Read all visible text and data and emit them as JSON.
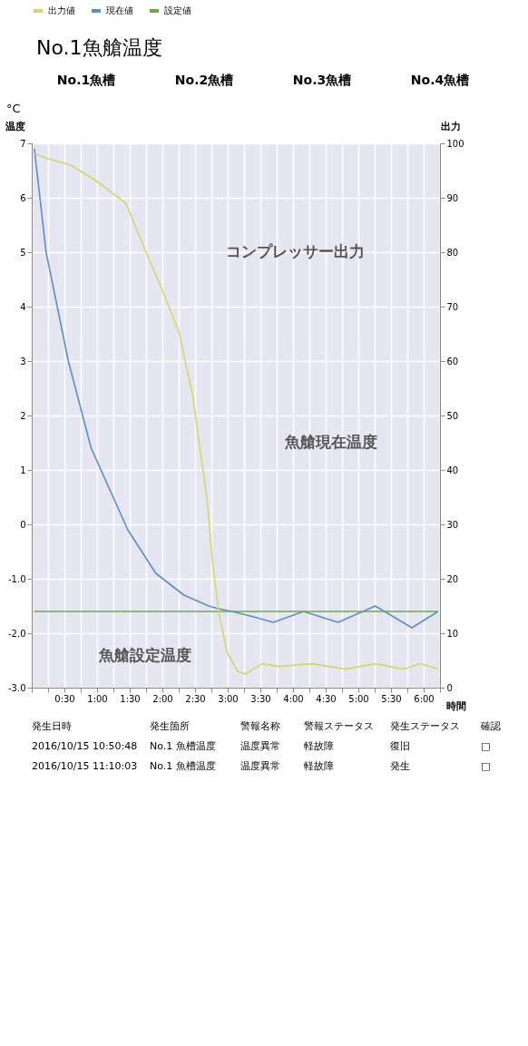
{
  "chart_data": {
    "type": "line",
    "title": "No.1魚艙温度",
    "xlabel": "時間",
    "ylabel": "温度",
    "y2label": "出力",
    "xlim": [
      0,
      6.25
    ],
    "xticks": [
      {
        "value": 0,
        "label": null
      },
      {
        "value": 0.25,
        "label": null
      },
      {
        "value": 0.5,
        "label": "0:30"
      },
      {
        "value": 0.75,
        "label": null
      },
      {
        "value": 1,
        "label": "1:00"
      },
      {
        "value": 1.25,
        "label": null
      },
      {
        "value": 1.5,
        "label": "1:30"
      },
      {
        "value": 1.75,
        "label": null
      },
      {
        "value": 2,
        "label": "2:00"
      },
      {
        "value": 2.25,
        "label": null
      },
      {
        "value": 2.5,
        "label": "2:30"
      },
      {
        "value": 2.75,
        "label": null
      },
      {
        "value": 3,
        "label": "3:00"
      },
      {
        "value": 3.25,
        "label": null
      },
      {
        "value": 3.5,
        "label": "3:30"
      },
      {
        "value": 3.75,
        "label": null
      },
      {
        "value": 4,
        "label": "4:00"
      },
      {
        "value": 4.25,
        "label": null
      },
      {
        "value": 4.5,
        "label": "4:30"
      },
      {
        "value": 4.75,
        "label": null
      },
      {
        "value": 5,
        "label": "5:00"
      },
      {
        "value": 5.25,
        "label": null
      },
      {
        "value": 5.5,
        "label": "5:30"
      },
      {
        "value": 5.75,
        "label": null
      },
      {
        "value": 6,
        "label": "6:00"
      },
      {
        "value": 6.25,
        "label": null
      }
    ],
    "ylim": [
      -3,
      7
    ],
    "yticks": [
      {
        "value": -3,
        "label": "-3.0"
      },
      {
        "value": -2,
        "label": "-2.0"
      },
      {
        "value": -1,
        "label": "-1.0"
      },
      0,
      1,
      2,
      3,
      4,
      5,
      6,
      7
    ],
    "y2lim": [
      0,
      100
    ],
    "y2ticks": [
      0,
      10,
      20,
      30,
      40,
      50,
      60,
      70,
      80,
      90,
      100
    ],
    "grid": true,
    "legend": "top",
    "line_style": "solid",
    "series": [
      {
        "name": "出力値",
        "color": "#d6d66a",
        "axis": "y2",
        "x": [
          0.05,
          0.3,
          0.6,
          1.0,
          1.44,
          1.75,
          2.0,
          2.25,
          2.46,
          2.69,
          2.76,
          2.86,
          2.99,
          3.15,
          3.27,
          3.53,
          3.78,
          4.29,
          4.8,
          5.26,
          5.69,
          5.95,
          6.22
        ],
        "values": [
          98,
          97,
          96,
          93,
          89,
          80,
          73,
          65.5,
          54,
          34,
          24,
          14,
          6.5,
          3,
          2.5,
          4.4,
          3.9,
          4.4,
          3.4,
          4.4,
          3.4,
          4.4,
          3.4
        ]
      },
      {
        "name": "現在値",
        "color": "#5b8fc9",
        "x": [
          0.04,
          0.22,
          0.56,
          0.91,
          1.47,
          1.9,
          2.33,
          2.71,
          2.86,
          3.07,
          3.4,
          3.7,
          4.16,
          4.69,
          5.26,
          5.82,
          6.22
        ],
        "values": [
          6.9,
          5.0,
          3.0,
          1.4,
          -0.1,
          -0.9,
          -1.3,
          -1.5,
          -1.55,
          -1.6,
          -1.7,
          -1.8,
          -1.6,
          -1.8,
          -1.5,
          -1.9,
          -1.6
        ]
      },
      {
        "name": "設定値",
        "color": "#6aa84f",
        "x": [
          0.04,
          6.22
        ],
        "values": [
          -1.6,
          -1.6
        ]
      }
    ],
    "annotations": [
      "コンプレッサー出力",
      "魚艙現在温度",
      "魚艙設定温度",
      "No.1魚槽",
      "No.2魚槽",
      "No.3魚槽",
      "No.4魚槽",
      "°C",
      "発生日時",
      "発生箇所",
      "警報名称",
      "警報ステータス",
      "発生ステータス",
      "確認",
      "2016/10/15 10:50:48",
      "No.1 魚槽温度",
      "温度異常",
      "軽故障",
      "復旧",
      "□",
      "2016/10/15 11:10:03",
      "No.1 魚槽温度",
      "温度異常",
      "軽故障",
      "発生",
      "□"
    ]
  }
}
